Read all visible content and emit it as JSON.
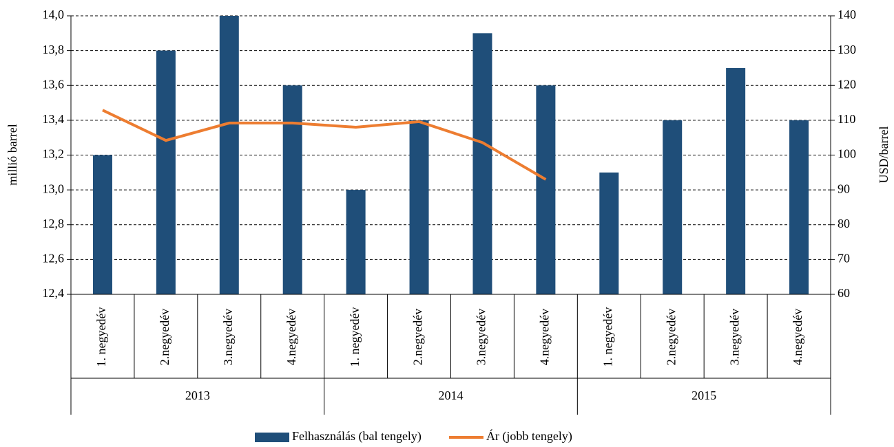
{
  "chart_data": {
    "type": "bar",
    "categories": [
      "1. negyedév",
      "2.negyedév",
      "3.negyedév",
      "4.negyedév",
      "1. negyedév",
      "2.negyedév",
      "3.negyedév",
      "4.negyedév",
      "1. negyedév",
      "2.negyedév",
      "3.negyedév",
      "4.negyedév"
    ],
    "groups": [
      "2013",
      "2014",
      "2015"
    ],
    "ylabel": "millió barrel",
    "y2label": "USD/barrel",
    "ylim": [
      12.4,
      14.0
    ],
    "yticks": [
      {
        "value": 12.4,
        "label": "12,4"
      },
      {
        "value": 12.6,
        "label": "12,6"
      },
      {
        "value": 12.8,
        "label": "12,8"
      },
      {
        "value": 13.0,
        "label": "13,0"
      },
      {
        "value": 13.2,
        "label": "13,2"
      },
      {
        "value": 13.4,
        "label": "13,4"
      },
      {
        "value": 13.6,
        "label": "13,6"
      },
      {
        "value": 13.8,
        "label": "13,8"
      },
      {
        "value": 14.0,
        "label": "14,0"
      }
    ],
    "y2lim": [
      60,
      140
    ],
    "y2ticks": [
      60,
      70,
      80,
      90,
      100,
      110,
      120,
      130,
      140
    ],
    "grid": true,
    "legend": "bottom",
    "series": [
      {
        "name": "Felhasználás (bal tengely)",
        "type": "bar",
        "color": "#1f4e79",
        "values": [
          13.2,
          13.8,
          14.0,
          13.6,
          13.0,
          13.4,
          13.9,
          13.6,
          13.1,
          13.4,
          13.7,
          13.4
        ]
      },
      {
        "name": "Ár (jobb tengely)",
        "type": "line",
        "axis": "y2",
        "color": "#ed7d31",
        "values": [
          112.9,
          104.2,
          109.2,
          109.2,
          108.0,
          109.6,
          103.6,
          93.0,
          null,
          null,
          null,
          null
        ]
      }
    ]
  }
}
